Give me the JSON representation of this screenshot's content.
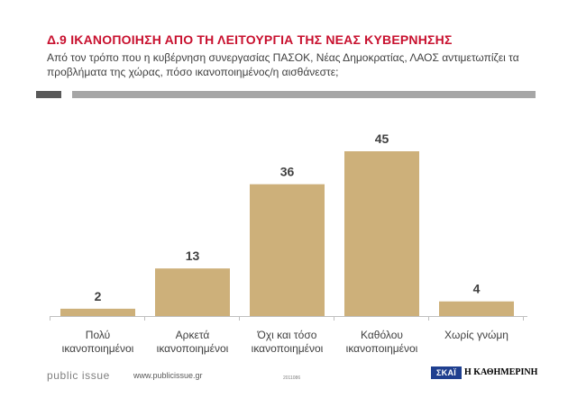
{
  "header": {
    "code": "Δ.9",
    "title": "ΙΚΑΝΟΠΟΙΗΣΗ ΑΠΟ ΤΗ ΛΕΙΤΟΥΡΓΙΑ ΤΗΣ ΝΕΑΣ ΚΥΒΕΡΝΗΣΗΣ",
    "question": "Από τον τρόπο που η κυβέρνηση συνεργασίας ΠΑΣΟΚ, Νέας Δημοκρατίας, ΛΑΟΣ αντιμετωπίζει τα προβλήματα της χώρας, πόσο ικανοποιημένος/η αισθάνεστε;"
  },
  "colors": {
    "accent": "#c8102e",
    "bar": "#cdb07a",
    "axis": "#bfbfbf",
    "rule_dark": "#595959",
    "rule_light": "#a6a6a6"
  },
  "chart_data": {
    "type": "bar",
    "title": "ΙΚΑΝΟΠΟΙΗΣΗ ΑΠΟ ΤΗ ΛΕΙΤΟΥΡΓΙΑ ΤΗΣ ΝΕΑΣ ΚΥΒΕΡΝΗΣΗΣ",
    "categories": [
      [
        "Πολύ",
        "ικανοποιημένοι"
      ],
      [
        "Αρκετά",
        "ικανοποιημένοι"
      ],
      [
        "Όχι και τόσο",
        "ικανοποιημένοι"
      ],
      [
        "Καθόλου",
        "ικανοποιημένοι"
      ],
      [
        "Χωρίς γνώμη"
      ]
    ],
    "values": [
      2,
      13,
      36,
      45,
      4
    ],
    "xlabel": "",
    "ylabel": "",
    "ylim": [
      0,
      50
    ],
    "grid": false,
    "legend": "none"
  },
  "footer": {
    "brand": "public issue",
    "url": "www.publicissue.gr",
    "code": "2011086",
    "logo_skai": "ΣΚΑΪ",
    "logo_kathimerini": "Η ΚΑΘΗΜΕΡΙΝΗ"
  }
}
